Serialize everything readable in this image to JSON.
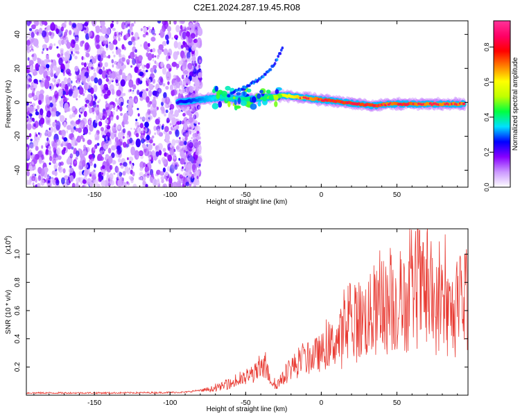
{
  "figure": {
    "title": "C2E1.2024.287.19.45.R08"
  },
  "chart_data": [
    {
      "type": "heatmap",
      "name": "spectrogram",
      "xlabel": "Height of straight line (km)",
      "ylabel": "Frequency (Hz)",
      "xlim": [
        -195,
        97
      ],
      "ylim": [
        -50,
        48
      ],
      "xticks": [
        -150,
        -100,
        -50,
        0,
        50
      ],
      "yticks": [
        -40,
        -20,
        0,
        20,
        40
      ],
      "xtick_labels": [
        "-150",
        "-100",
        "-50",
        "0",
        "50"
      ],
      "ytick_labels": [
        "-40",
        "-20",
        "0",
        "20",
        "40"
      ],
      "noise_region_x": [
        -195,
        -80
      ],
      "signal_trace": {
        "x": [
          -95,
          -85,
          -75,
          -65,
          -55,
          -45,
          -35,
          -25,
          -15,
          -5,
          5,
          15,
          25,
          35,
          45,
          55,
          65,
          75,
          85,
          95
        ],
        "y": [
          0,
          1,
          2,
          3,
          2,
          2,
          3,
          4,
          3,
          2,
          1,
          0,
          -1,
          -2,
          -1,
          -1,
          -1,
          -1,
          -1,
          -1
        ],
        "amplitude": [
          0.35,
          0.4,
          0.45,
          0.5,
          0.5,
          0.55,
          0.6,
          0.7,
          0.75,
          0.8,
          0.85,
          0.85,
          0.85,
          0.85,
          0.8,
          0.85,
          0.8,
          0.8,
          0.8,
          0.8
        ]
      },
      "branch_trace": {
        "x": [
          -60,
          -50,
          -40,
          -35,
          -30,
          -25
        ],
        "y": [
          5,
          9,
          14,
          18,
          24,
          33
        ]
      },
      "colorbar": {
        "label": "Normalized spectral amplitude",
        "range": [
          0,
          0.95
        ],
        "ticks": [
          0.0,
          0.2,
          0.4,
          0.6,
          0.8
        ],
        "tick_labels": [
          "0.0",
          "0.2",
          "0.4",
          "0.6",
          "0.8"
        ],
        "colors": [
          "#ffffff",
          "#cc99ff",
          "#8800ff",
          "#0000ff",
          "#00e0ff",
          "#00ff40",
          "#c0ff00",
          "#ffff00",
          "#ff8000",
          "#ff0000",
          "#ff0066",
          "#ff3399"
        ]
      }
    },
    {
      "type": "line",
      "name": "snr",
      "xlabel": "Height of straight line (km)",
      "ylabel": "SNR (10 * v/v)",
      "scale_label": "(x10",
      "scale_exponent": "4",
      "scale_close": ")",
      "color": "#e83a32",
      "xlim": [
        -195,
        97
      ],
      "ylim": [
        0,
        1.18
      ],
      "xticks": [
        -150,
        -100,
        -50,
        0,
        50
      ],
      "yticks": [
        0.2,
        0.4,
        0.6,
        0.8,
        1.0
      ],
      "xtick_labels": [
        "-150",
        "-100",
        "-50",
        "0",
        "50"
      ],
      "ytick_labels": [
        "0.2",
        "0.4",
        "0.6",
        "0.8",
        "1.0"
      ],
      "series": [
        {
          "name": "SNR",
          "x": [
            -195,
            -170,
            -140,
            -110,
            -90,
            -80,
            -70,
            -60,
            -50,
            -45,
            -40,
            -37,
            -33,
            -30,
            -25,
            -20,
            -15,
            -10,
            -5,
            0,
            5,
            10,
            15,
            20,
            25,
            30,
            35,
            40,
            45,
            50,
            55,
            60,
            65,
            70,
            75,
            80,
            85,
            90,
            95
          ],
          "y": [
            0.01,
            0.01,
            0.01,
            0.012,
            0.015,
            0.03,
            0.05,
            0.08,
            0.12,
            0.15,
            0.18,
            0.2,
            0.1,
            0.07,
            0.12,
            0.2,
            0.22,
            0.25,
            0.28,
            0.3,
            0.35,
            0.38,
            0.42,
            0.48,
            0.52,
            0.55,
            0.57,
            0.6,
            0.62,
            0.65,
            0.63,
            0.7,
            0.72,
            0.68,
            0.62,
            0.6,
            0.58,
            0.55,
            0.62
          ],
          "peaks": {
            "x": [
              -38,
              15,
              25,
              40,
              55,
              65,
              70,
              78,
              82,
              95
            ],
            "y": [
              0.26,
              0.75,
              0.8,
              0.95,
              0.9,
              1.17,
              1.15,
              1.09,
              1.14,
              1.0
            ]
          }
        }
      ]
    }
  ]
}
